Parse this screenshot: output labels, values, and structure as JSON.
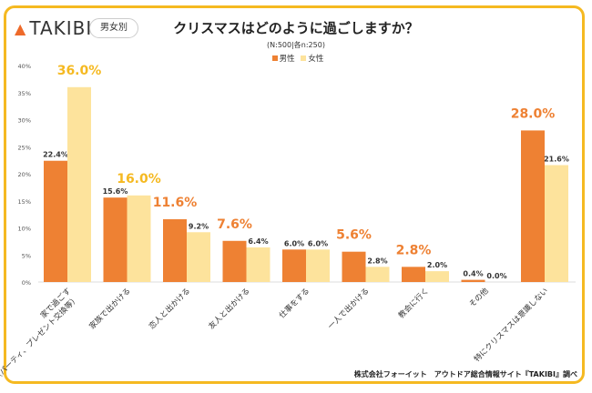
{
  "brand": "TAKIBI",
  "badge": "男女別",
  "title": "クリスマスはどのように過ごしますか？",
  "subtitle": "(N:500|各n:250)",
  "credit": "株式会社フォーイット　アウトドア総合情報サイト『TAKIBI』調べ",
  "colors": {
    "male": "#ee8133",
    "female": "#fde39c",
    "male_highlight": "#ee8133",
    "female_highlight": "#f5b921",
    "frame": "#f5b921"
  },
  "chart_data": {
    "type": "bar",
    "title": "クリスマスはどのように過ごしますか？",
    "categories": [
      "家で過ごす\n（パーティ、プレゼント交換等）",
      "家族で出かける",
      "恋人と出かける",
      "友人と出かける",
      "仕事をする",
      "一人で出かける",
      "教会に行く",
      "その他",
      "特にクリスマスは意識しない"
    ],
    "series": [
      {
        "name": "男性",
        "values": [
          22.4,
          15.6,
          11.6,
          7.6,
          6.0,
          5.6,
          2.8,
          0.4,
          28.0
        ]
      },
      {
        "name": "女性",
        "values": [
          36.0,
          16.0,
          9.2,
          6.4,
          6.0,
          2.8,
          2.0,
          0.0,
          21.6
        ]
      }
    ],
    "highlight": [
      [
        false,
        true
      ],
      [
        false,
        true
      ],
      [
        true,
        false
      ],
      [
        true,
        false
      ],
      [
        false,
        false
      ],
      [
        true,
        false
      ],
      [
        true,
        false
      ],
      [
        false,
        false
      ],
      [
        true,
        false
      ]
    ],
    "yticks": [
      "0%",
      "5%",
      "10%",
      "15%",
      "20%",
      "25%",
      "30%",
      "35%",
      "40%"
    ],
    "ylim": [
      0,
      40
    ],
    "legend": "top",
    "grid": false
  }
}
